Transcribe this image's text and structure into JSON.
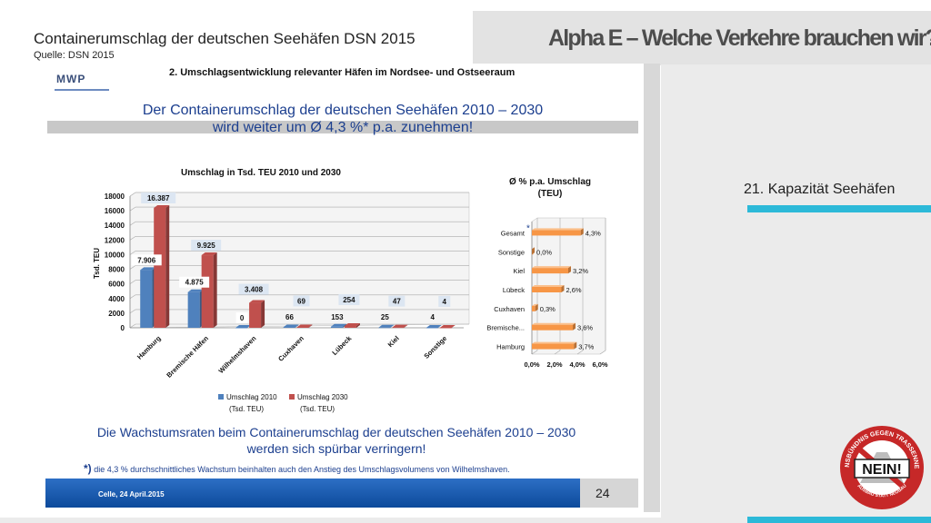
{
  "slide": {
    "title": "Containerumschlag der deutschen Seehäfen DSN 2015",
    "source": "Quelle: DSN 2015",
    "main_title": "Alpha E – Welche Verkehre brauchen wir?",
    "side_label": "21. Kapazität Seehäfen"
  },
  "document": {
    "logo": "MWP",
    "heading": "2. Umschlagsentwicklung relevanter Häfen im Nordsee- und Ostseeraum",
    "headline_1": "Der Containerumschlag der deutschen Seehäfen 2010 – 2030",
    "headline_2": "wird weiter um Ø 4,3 %*  p.a. zunehmen!",
    "bottom_1": "Die Wachstumsraten beim Containerumschlag der deutschen Seehäfen 2010 – 2030",
    "bottom_2": "werden sich spürbar verringern!",
    "footnote_mark": "*)",
    "footnote": "die 4,3 % durchschnittliches Wachstum beinhalten auch den Anstieg des Umschlagsvolumens von Wilhelmshaven.",
    "footer_date": "Celle, 24 April.2015",
    "page_number": "24"
  },
  "logo": {
    "text": "NEIN!",
    "ring_text": "AKTIONSBÜNDNIS GEGEN TRASSENNEUBAU",
    "bottom_text": "AUSBAU STATT NEUBAU"
  },
  "chart_data": [
    {
      "type": "bar",
      "title": "Umschlag in Tsd. TEU 2010 und 2030",
      "ylabel": "Tsd. TEU",
      "ylim": [
        0,
        18000
      ],
      "yticks": [
        0,
        2000,
        4000,
        6000,
        8000,
        10000,
        12000,
        14000,
        16000,
        18000
      ],
      "categories": [
        "Hamburg",
        "Bremische Häfen",
        "Wilhelmshaven",
        "Cuxhaven",
        "Lübeck",
        "Kiel",
        "Sonstige"
      ],
      "series": [
        {
          "name": "Umschlag 2010",
          "name_2": "(Tsd. TEU)",
          "color": "#4f81bd",
          "values": [
            7906,
            4875,
            0,
            66,
            153,
            25,
            4
          ],
          "labels": [
            "7.906",
            "4.875",
            "0",
            "66",
            "153",
            "25",
            "4"
          ]
        },
        {
          "name": "Umschlag 2030",
          "name_2": "(Tsd. TEU)",
          "color": "#c0504d",
          "values": [
            16387,
            9925,
            3408,
            69,
            254,
            47,
            4
          ],
          "labels": [
            "16.387",
            "9.925",
            "3.408",
            "69",
            "254",
            "47",
            "4"
          ]
        }
      ]
    },
    {
      "type": "bar",
      "orientation": "horizontal",
      "title": "Ø  % p.a. Umschlag",
      "title_2": "(TEU)",
      "xlim": [
        0,
        6
      ],
      "xticks": [
        "0,0%",
        "2,0%",
        "4,0%",
        "6,0%"
      ],
      "color": "#f79646",
      "categories": [
        "Gesamt",
        "Sonstige",
        "Kiel",
        "Lübeck",
        "Cuxhaven",
        "Bremische...",
        "Hamburg"
      ],
      "values": [
        4.3,
        0.0,
        3.2,
        2.6,
        0.3,
        3.6,
        3.7
      ],
      "labels": [
        "4,3%",
        "0,0%",
        "3,2%",
        "2,6%",
        "0,3%",
        "3,6%",
        "3,7%"
      ],
      "star": "*"
    }
  ]
}
